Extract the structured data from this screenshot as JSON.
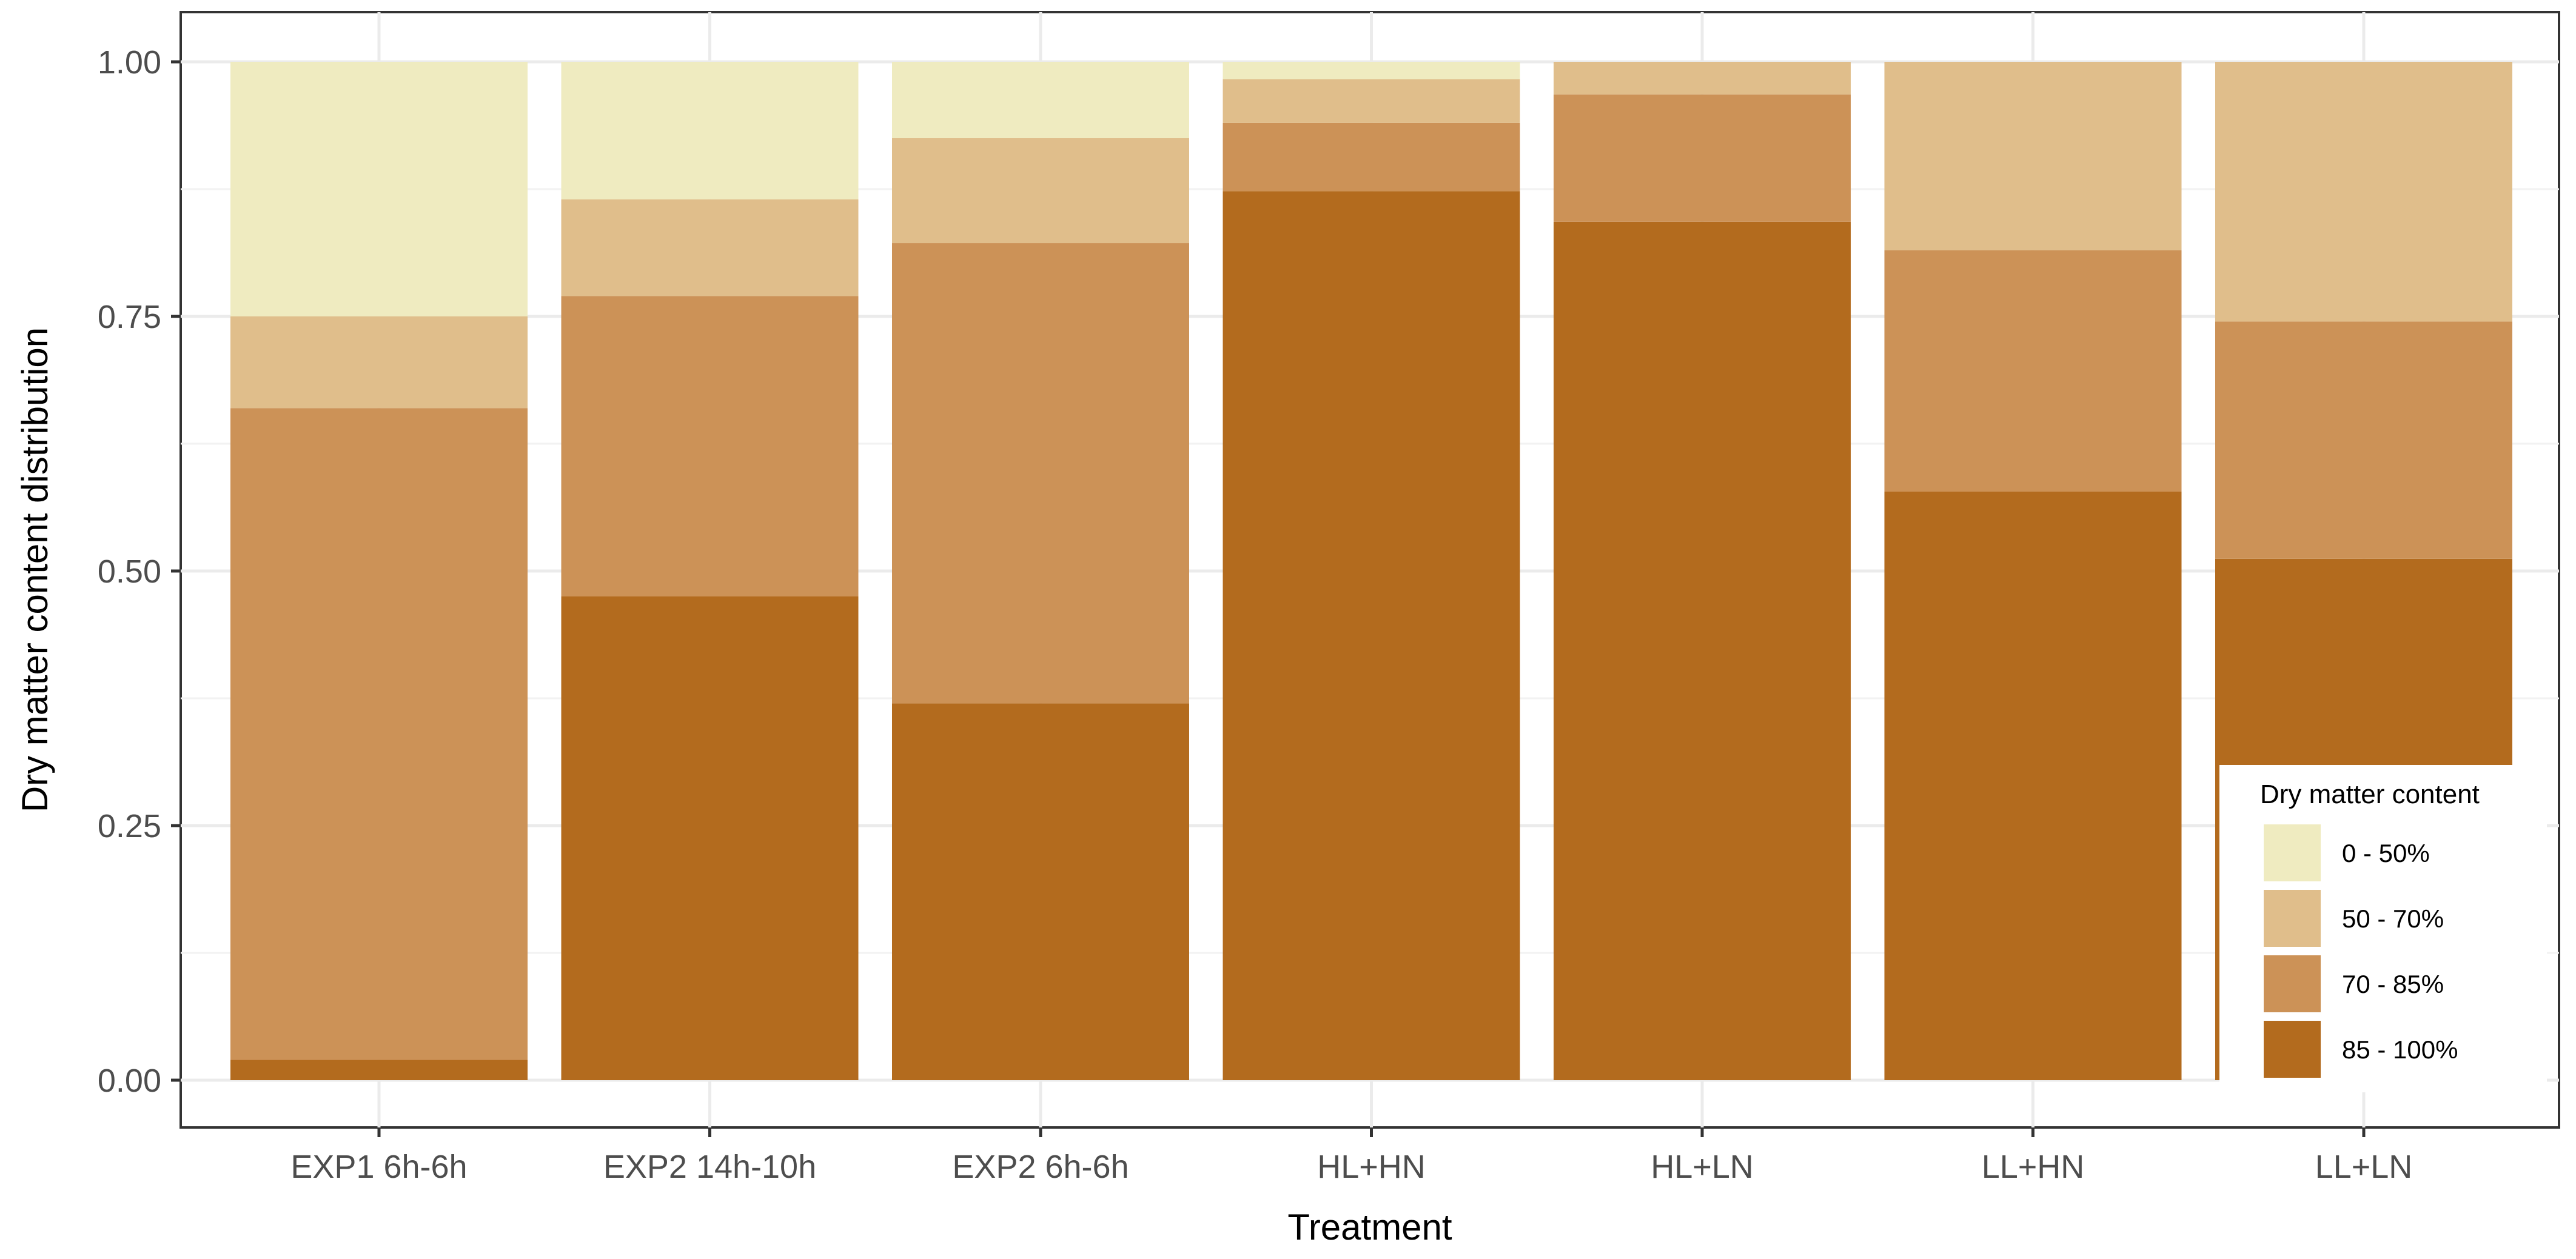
{
  "chart_data": {
    "type": "bar",
    "stacked": true,
    "xlabel": "Treatment",
    "ylabel": "Dry matter content distribution",
    "ylim": [
      0,
      1
    ],
    "yticks": [
      "0.00",
      "0.25",
      "0.50",
      "0.75",
      "1.00"
    ],
    "categories": [
      "EXP1 6h-6h",
      "EXP2 14h-10h",
      "EXP2 6h-6h",
      "HL+HN",
      "HL+LN",
      "LL+HN",
      "LL+LN"
    ],
    "legend": {
      "title": "Dry matter content",
      "position": "bottom-right"
    },
    "grid": true,
    "series": [
      {
        "name": "85 - 100%",
        "color": "#b36b1e",
        "values": [
          0.02,
          0.475,
          0.37,
          0.873,
          0.843,
          0.578,
          0.512
        ]
      },
      {
        "name": "70 - 85%",
        "color": "#cc9257",
        "values": [
          0.64,
          0.295,
          0.452,
          0.067,
          0.125,
          0.237,
          0.233
        ]
      },
      {
        "name": "50 - 70%",
        "color": "#e0be8b",
        "values": [
          0.09,
          0.095,
          0.103,
          0.043,
          0.032,
          0.185,
          0.255
        ]
      },
      {
        "name": "0 - 50%",
        "color": "#efebc0",
        "values": [
          0.25,
          0.135,
          0.075,
          0.017,
          0.0,
          0.0,
          0.0
        ]
      }
    ]
  }
}
